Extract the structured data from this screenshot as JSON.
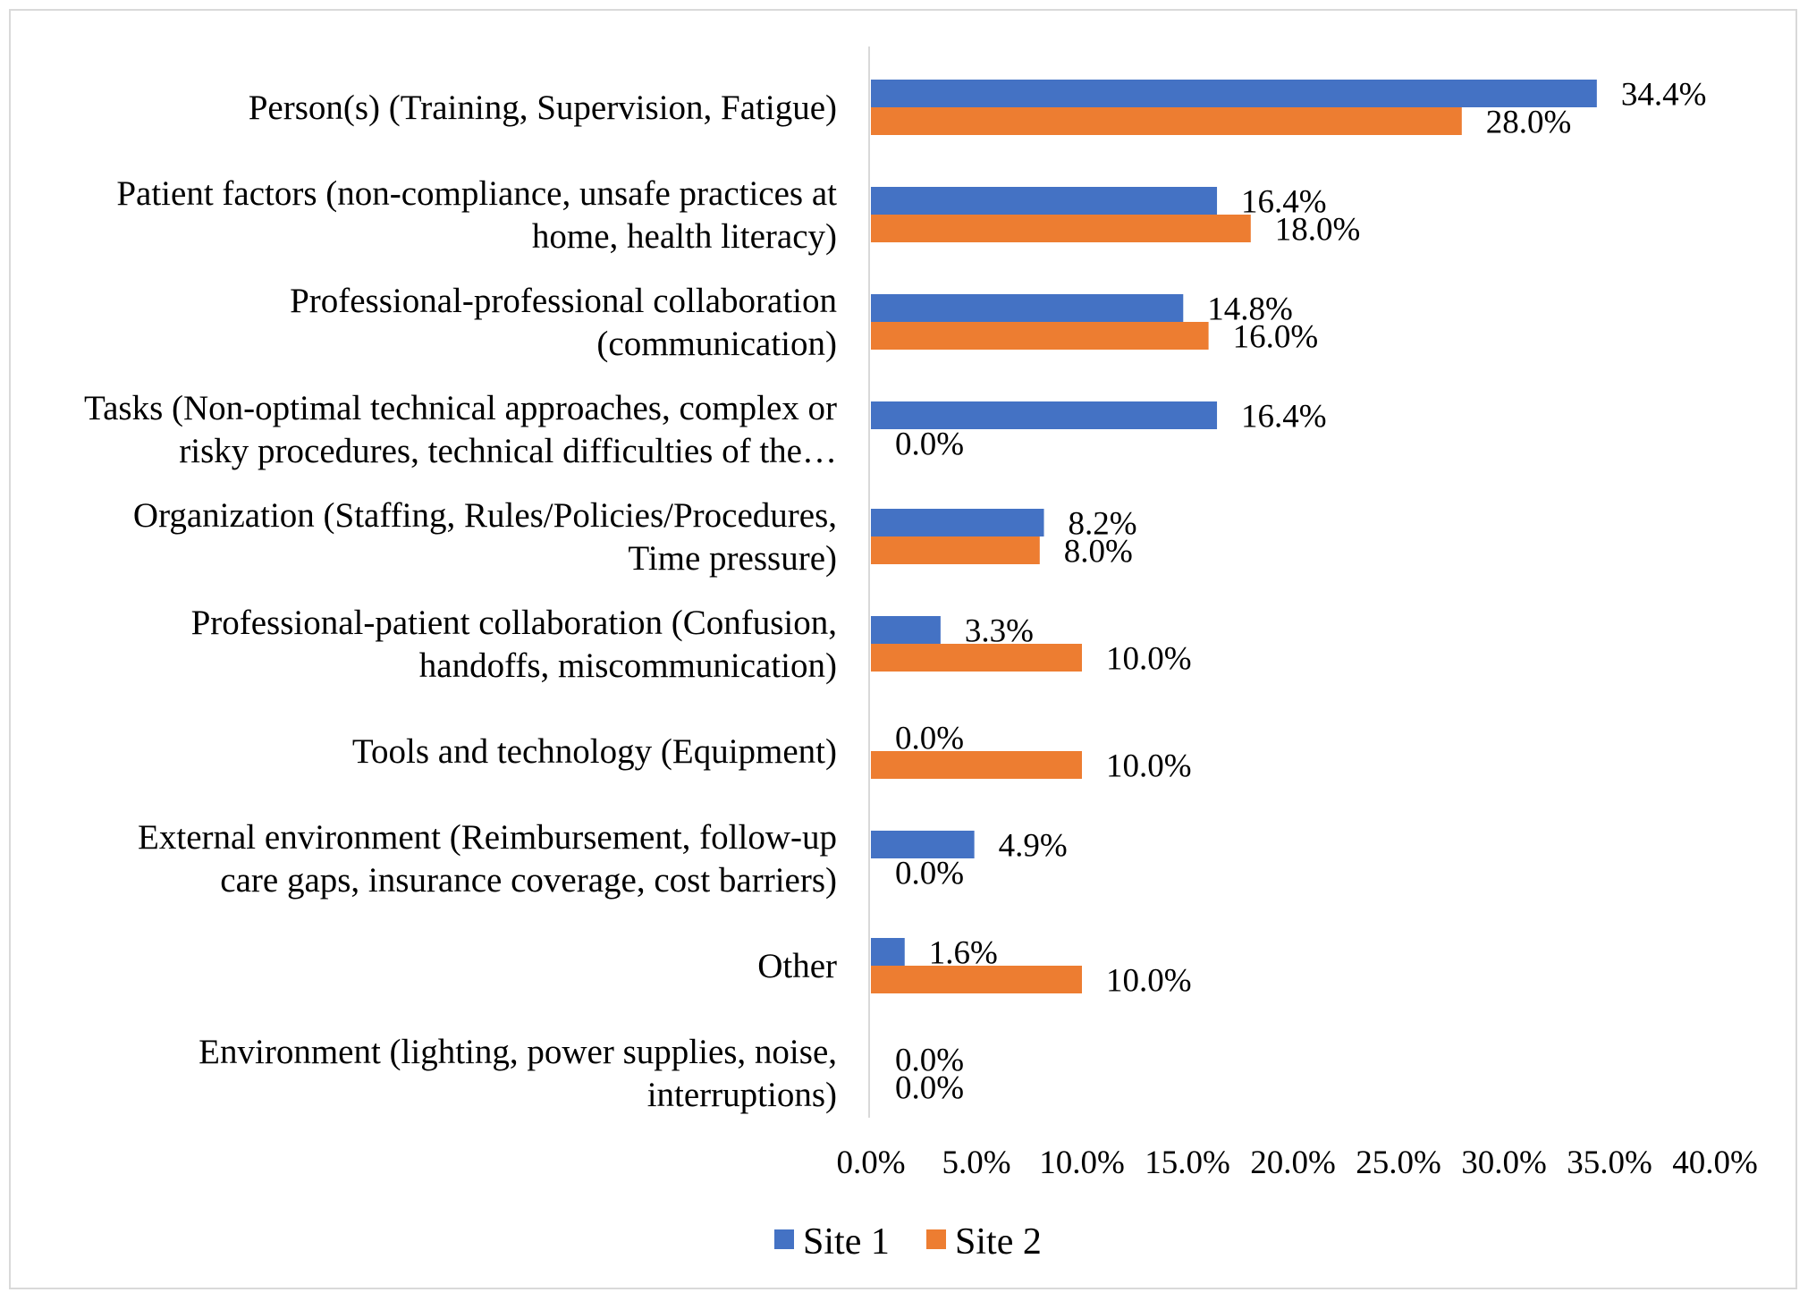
{
  "chart_data": {
    "type": "bar",
    "orientation": "horizontal",
    "title": "",
    "xlabel": "",
    "ylabel": "",
    "xlim": [
      0,
      40
    ],
    "x_ticks": [
      "0.0%",
      "5.0%",
      "10.0%",
      "15.0%",
      "20.0%",
      "25.0%",
      "30.0%",
      "35.0%",
      "40.0%"
    ],
    "grid": false,
    "legend_position": "bottom",
    "categories": [
      [
        "Person(s) (Training, Supervision, Fatigue)"
      ],
      [
        "Patient factors (non-compliance, unsafe practices at",
        "home, health literacy)"
      ],
      [
        "Professional-professional collaboration",
        "(communication)"
      ],
      [
        "Tasks (Non-optimal technical approaches, complex or",
        "risky procedures, technical difficulties of the…"
      ],
      [
        "Organization (Staffing, Rules/Policies/Procedures,",
        "Time pressure)"
      ],
      [
        "Professional-patient collaboration (Confusion,",
        "handoffs, miscommunication)"
      ],
      [
        "Tools and technology (Equipment)"
      ],
      [
        "External environment (Reimbursement, follow-up",
        "care gaps, insurance coverage, cost barriers)"
      ],
      [
        "Other"
      ],
      [
        "Environment (lighting, power supplies, noise,",
        "interruptions)"
      ]
    ],
    "series": [
      {
        "name": "Site 1",
        "color": "#4472c4",
        "values": [
          34.4,
          16.4,
          14.8,
          16.4,
          8.2,
          3.3,
          0.0,
          4.9,
          1.6,
          0.0
        ],
        "labels": [
          "34.4%",
          "16.4%",
          "14.8%",
          "16.4%",
          "8.2%",
          "3.3%",
          "0.0%",
          "4.9%",
          "1.6%",
          "0.0%"
        ]
      },
      {
        "name": "Site 2",
        "color": "#ed7d31",
        "values": [
          28.0,
          18.0,
          16.0,
          0.0,
          8.0,
          10.0,
          10.0,
          0.0,
          10.0,
          0.0
        ],
        "labels": [
          "28.0%",
          "18.0%",
          "16.0%",
          "0.0%",
          "8.0%",
          "10.0%",
          "10.0%",
          "0.0%",
          "10.0%",
          "0.0%"
        ]
      }
    ],
    "axis_line_color": "#d9d9d9"
  }
}
